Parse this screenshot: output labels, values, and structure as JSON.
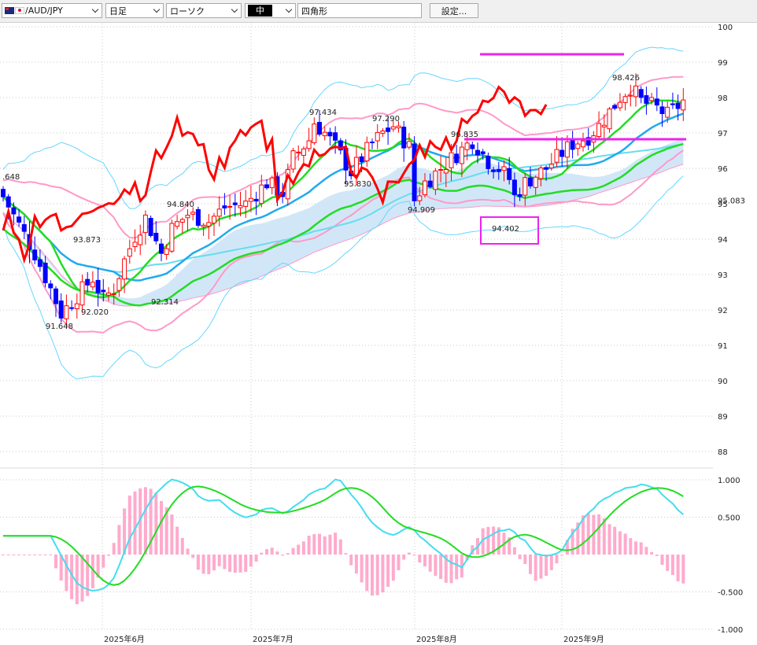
{
  "toolbar": {
    "symbol": "/AUD/JPY",
    "timeframe": "日足",
    "chart_style": "ローソク",
    "line_style": "中",
    "drawing_tool": "四角形",
    "settings_label": "設定..."
  },
  "chart_data": [
    {
      "type": "candlestick",
      "title": "AUD/JPY",
      "ylim": [
        87.8,
        100.2
      ],
      "y_ticks": [
        "100",
        "99",
        "98",
        "97",
        "96",
        "95",
        "94",
        "93",
        "92",
        "91",
        "90",
        "89",
        "88"
      ],
      "x_ticks": [
        "2025年6月",
        "2025年7月",
        "2025年8月",
        "2025年9月"
      ],
      "current_price_label": "95.083",
      "annotations": [
        "97.434",
        "97.290",
        "96.835",
        "95.830",
        "94.909",
        "94.840",
        "94.402",
        "93.873",
        "92.314",
        "92.020",
        "91.648",
        "98.426",
        ".648"
      ],
      "colors": {
        "up": "#ff0000",
        "down": "#0000ff",
        "cloud": "#cce4f7",
        "boll_outer": "#66d6ff",
        "boll_inner": "#ff99c8",
        "sma_short": "#22dd22",
        "sma_mid": "#22aaee",
        "sma_long": "#66ddee",
        "lagging": "#ff0000",
        "drawing": "#ee22ee"
      },
      "grid": true
    },
    {
      "type": "macd",
      "ylim": [
        -1.0,
        1.0
      ],
      "y_ticks": [
        "1.000",
        "0.500",
        "-0.500",
        "-1.000"
      ],
      "colors": {
        "macd": "#44ddee",
        "signal": "#22dd22",
        "histogram": "#ffaacc"
      }
    }
  ]
}
